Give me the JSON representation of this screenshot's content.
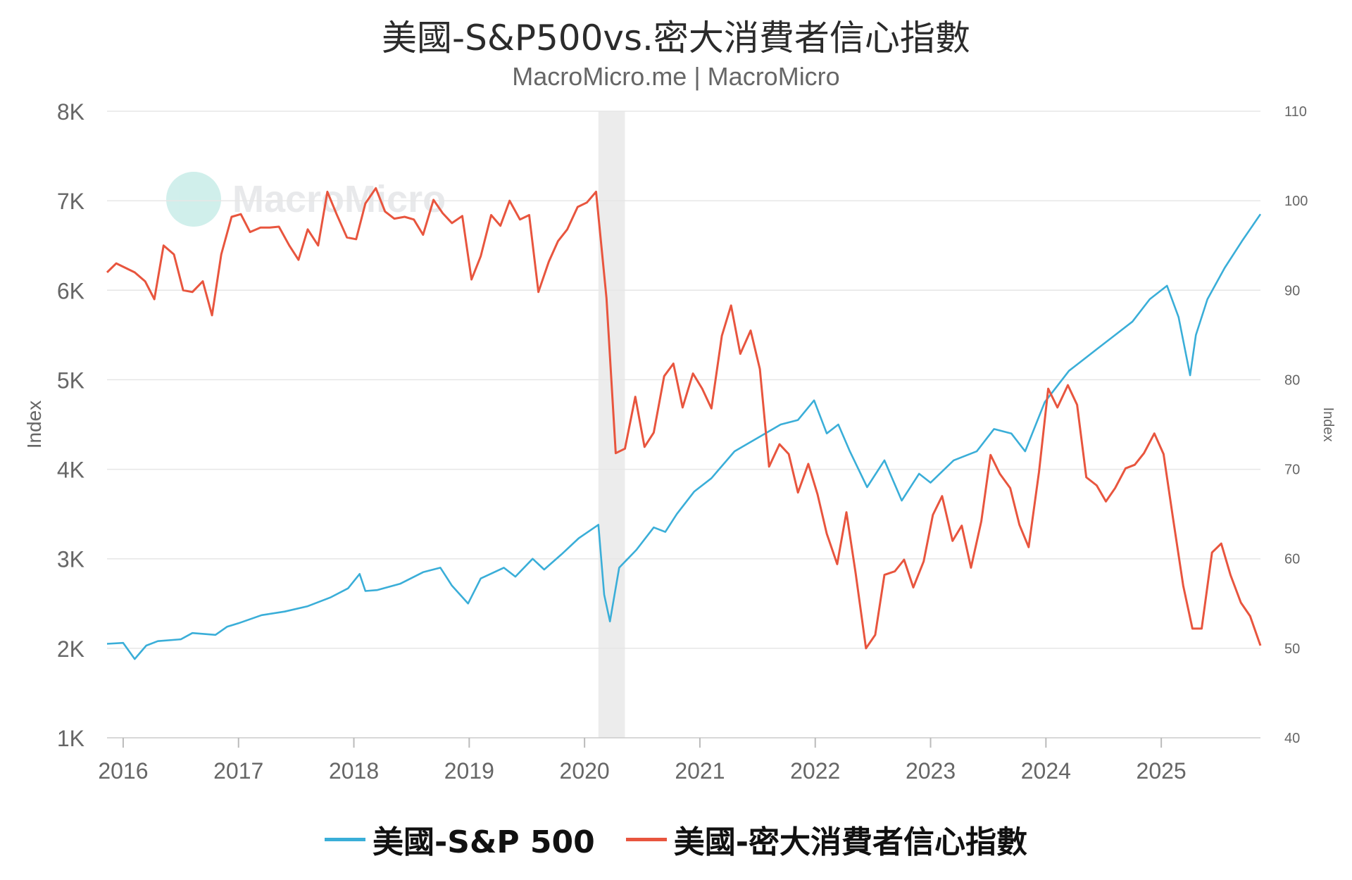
{
  "title": "美國-S&P500vs.密大消費者信心指數",
  "subtitle": "MacroMicro.me | MacroMicro",
  "watermark": "MacroMicro",
  "legend": [
    {
      "label": "美國-S&P 500",
      "color": "#3aaed8"
    },
    {
      "label": "美國-密大消費者信心指數",
      "color": "#e8553e"
    }
  ],
  "chart_data": {
    "type": "line",
    "x_ticks": [
      "2016",
      "2017",
      "2018",
      "2019",
      "2020",
      "2021",
      "2022",
      "2023",
      "2024",
      "2025"
    ],
    "xlim": [
      2015.86,
      2025.86
    ],
    "y_left": {
      "label": "Index",
      "ticks": [
        "1K",
        "2K",
        "3K",
        "4K",
        "5K",
        "6K",
        "7K",
        "8K"
      ],
      "lim": [
        1000,
        8000
      ]
    },
    "y_right": {
      "label": "Index",
      "ticks": [
        "40",
        "50",
        "60",
        "70",
        "80",
        "90",
        "100",
        "110"
      ],
      "lim": [
        40,
        110
      ]
    },
    "recession_shading": [
      2020.12,
      2020.35
    ],
    "grid": true,
    "series": [
      {
        "name": "美國-S&P 500",
        "axis": "left",
        "color": "#3aaed8",
        "x": [
          2015.86,
          2016.0,
          2016.1,
          2016.2,
          2016.3,
          2016.5,
          2016.6,
          2016.8,
          2016.9,
          2017.0,
          2017.2,
          2017.4,
          2017.6,
          2017.8,
          2017.95,
          2018.05,
          2018.1,
          2018.2,
          2018.4,
          2018.6,
          2018.75,
          2018.85,
          2018.99,
          2019.1,
          2019.3,
          2019.4,
          2019.55,
          2019.65,
          2019.8,
          2019.95,
          2020.12,
          2020.17,
          2020.22,
          2020.3,
          2020.45,
          2020.6,
          2020.7,
          2020.8,
          2020.95,
          2021.1,
          2021.3,
          2021.5,
          2021.7,
          2021.85,
          2021.99,
          2022.1,
          2022.2,
          2022.3,
          2022.45,
          2022.6,
          2022.75,
          2022.9,
          2023.0,
          2023.2,
          2023.4,
          2023.55,
          2023.7,
          2023.82,
          2023.99,
          2024.2,
          2024.3,
          2024.45,
          2024.6,
          2024.75,
          2024.9,
          2025.05,
          2025.15,
          2025.25,
          2025.3,
          2025.4,
          2025.55,
          2025.7,
          2025.86
        ],
        "values": [
          2050,
          2060,
          1880,
          2030,
          2080,
          2100,
          2170,
          2150,
          2240,
          2280,
          2370,
          2410,
          2470,
          2570,
          2670,
          2830,
          2640,
          2650,
          2720,
          2850,
          2900,
          2700,
          2500,
          2780,
          2900,
          2800,
          3000,
          2880,
          3050,
          3230,
          3380,
          2600,
          2300,
          2900,
          3100,
          3350,
          3300,
          3500,
          3750,
          3900,
          4200,
          4350,
          4500,
          4550,
          4770,
          4400,
          4500,
          4200,
          3800,
          4100,
          3650,
          3950,
          3850,
          4100,
          4200,
          4450,
          4400,
          4200,
          4750,
          5100,
          5200,
          5350,
          5500,
          5650,
          5900,
          6050,
          5700,
          5050,
          5500,
          5900,
          6250,
          6550,
          6850
        ]
      },
      {
        "name": "美國-密大消費者信心指數",
        "axis": "right",
        "color": "#e8553e",
        "x": [
          2015.86,
          2015.94,
          2016.02,
          2016.1,
          2016.19,
          2016.27,
          2016.35,
          2016.44,
          2016.52,
          2016.6,
          2016.69,
          2016.77,
          2016.85,
          2016.94,
          2017.02,
          2017.1,
          2017.19,
          2017.27,
          2017.35,
          2017.44,
          2017.52,
          2017.6,
          2017.69,
          2017.77,
          2017.85,
          2017.94,
          2018.02,
          2018.1,
          2018.19,
          2018.27,
          2018.35,
          2018.44,
          2018.52,
          2018.6,
          2018.69,
          2018.77,
          2018.85,
          2018.94,
          2019.02,
          2019.1,
          2019.19,
          2019.27,
          2019.35,
          2019.44,
          2019.52,
          2019.6,
          2019.69,
          2019.77,
          2019.85,
          2019.94,
          2020.02,
          2020.1,
          2020.19,
          2020.27,
          2020.35,
          2020.44,
          2020.52,
          2020.6,
          2020.69,
          2020.77,
          2020.85,
          2020.94,
          2021.02,
          2021.1,
          2021.19,
          2021.27,
          2021.35,
          2021.44,
          2021.52,
          2021.6,
          2021.69,
          2021.77,
          2021.85,
          2021.94,
          2022.02,
          2022.1,
          2022.19,
          2022.27,
          2022.35,
          2022.44,
          2022.52,
          2022.6,
          2022.69,
          2022.77,
          2022.85,
          2022.94,
          2023.02,
          2023.1,
          2023.19,
          2023.27,
          2023.35,
          2023.44,
          2023.52,
          2023.6,
          2023.69,
          2023.77,
          2023.85,
          2023.94,
          2024.02,
          2024.1,
          2024.19,
          2024.27,
          2024.35,
          2024.44,
          2024.52,
          2024.6,
          2024.69,
          2024.77,
          2024.85,
          2024.94,
          2025.02,
          2025.1,
          2025.19,
          2025.27,
          2025.35,
          2025.44,
          2025.52,
          2025.6,
          2025.69,
          2025.77,
          2025.86
        ],
        "values": [
          92,
          93,
          92.5,
          92,
          91,
          89,
          95,
          94,
          90,
          89.8,
          91,
          87.2,
          94,
          98.2,
          98.5,
          96.5,
          97,
          97,
          97.1,
          95,
          93.4,
          96.8,
          95,
          101,
          98.5,
          95.9,
          95.7,
          99.7,
          101.4,
          98.8,
          98,
          98.2,
          97.9,
          96.2,
          100.1,
          98.6,
          97.5,
          98.3,
          91.2,
          93.8,
          98.4,
          97.2,
          100,
          97.9,
          98.4,
          89.8,
          93.2,
          95.5,
          96.8,
          99.3,
          99.8,
          101,
          89.1,
          71.8,
          72.3,
          78.1,
          72.5,
          74.1,
          80.4,
          81.8,
          76.9,
          80.7,
          79,
          76.8,
          84.9,
          88.3,
          82.9,
          85.5,
          81.2,
          70.3,
          72.8,
          71.7,
          67.4,
          70.6,
          67.2,
          62.8,
          59.4,
          65.2,
          58.4,
          50,
          51.5,
          58.2,
          58.6,
          59.9,
          56.8,
          59.7,
          64.9,
          67,
          62,
          63.7,
          59,
          64.2,
          71.6,
          69.5,
          67.9,
          63.8,
          61.3,
          69.7,
          79,
          76.9,
          79.4,
          77.2,
          69.1,
          68.2,
          66.4,
          67.9,
          70.1,
          70.5,
          71.8,
          74,
          71.7,
          64.7,
          57,
          52.2,
          52.2,
          60.7,
          61.7,
          58.2,
          55.1,
          53.6,
          50.3
        ]
      }
    ]
  }
}
